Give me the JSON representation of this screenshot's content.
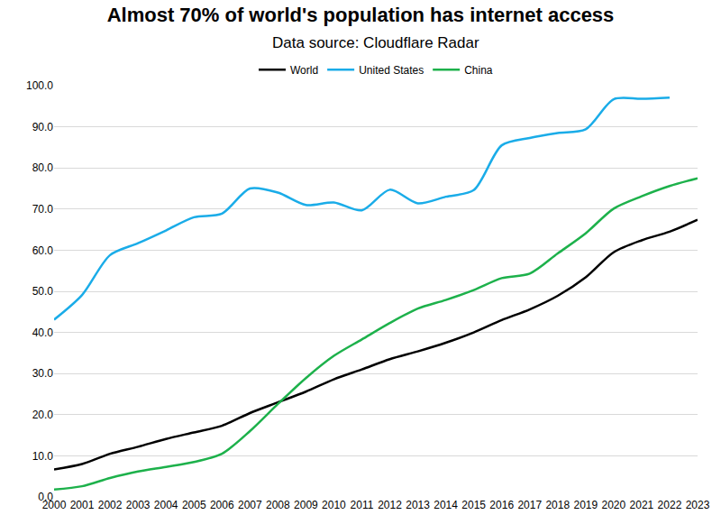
{
  "chart_data": {
    "type": "line",
    "title": "Almost 70% of world's population has internet access",
    "subtitle": "Data source: Cloudflare Radar",
    "categories": [
      "2000",
      "2001",
      "2002",
      "2003",
      "2004",
      "2005",
      "2006",
      "2007",
      "2008",
      "2009",
      "2010",
      "2011",
      "2012",
      "2013",
      "2014",
      "2015",
      "2016",
      "2017",
      "2018",
      "2019",
      "2020",
      "2021",
      "2022",
      "2023"
    ],
    "series": [
      {
        "name": "World",
        "color": "#000000",
        "values": [
          6.7,
          8.0,
          10.5,
          12.2,
          14.1,
          15.7,
          17.3,
          20.4,
          23.0,
          25.6,
          28.6,
          31.0,
          33.5,
          35.4,
          37.5,
          40.0,
          43.0,
          45.6,
          48.9,
          53.4,
          59.5,
          62.4,
          64.5,
          67.4
        ]
      },
      {
        "name": "United States",
        "color": "#1aace8",
        "values": [
          43.1,
          49.1,
          58.8,
          61.7,
          64.8,
          68.0,
          68.9,
          75.0,
          74.0,
          71.0,
          71.6,
          69.7,
          74.7,
          71.4,
          73.0,
          74.6,
          85.5,
          87.3,
          88.5,
          89.4,
          96.7,
          96.8,
          97.1,
          null
        ]
      },
      {
        "name": "China",
        "color": "#1db14b",
        "values": [
          1.8,
          2.6,
          4.6,
          6.2,
          7.3,
          8.5,
          10.5,
          16.0,
          22.6,
          28.9,
          34.3,
          38.3,
          42.3,
          45.8,
          47.9,
          50.3,
          53.2,
          54.3,
          59.2,
          64.1,
          70.1,
          73.1,
          75.6,
          77.5
        ]
      }
    ],
    "ylim": [
      0,
      100
    ],
    "yticks": [
      {
        "value": 0,
        "label": "0.0"
      },
      {
        "value": 10,
        "label": "10.0"
      },
      {
        "value": 20,
        "label": "20.0"
      },
      {
        "value": 30,
        "label": "30.0"
      },
      {
        "value": 40,
        "label": "40.0"
      },
      {
        "value": 50,
        "label": "50.0"
      },
      {
        "value": 60,
        "label": "60.0"
      },
      {
        "value": 70,
        "label": "70.0"
      },
      {
        "value": 80,
        "label": "80.0"
      },
      {
        "value": 90,
        "label": "90.0"
      },
      {
        "value": 100,
        "label": "100.0"
      }
    ],
    "grid": true,
    "legend": "top",
    "line_style": "smooth"
  }
}
